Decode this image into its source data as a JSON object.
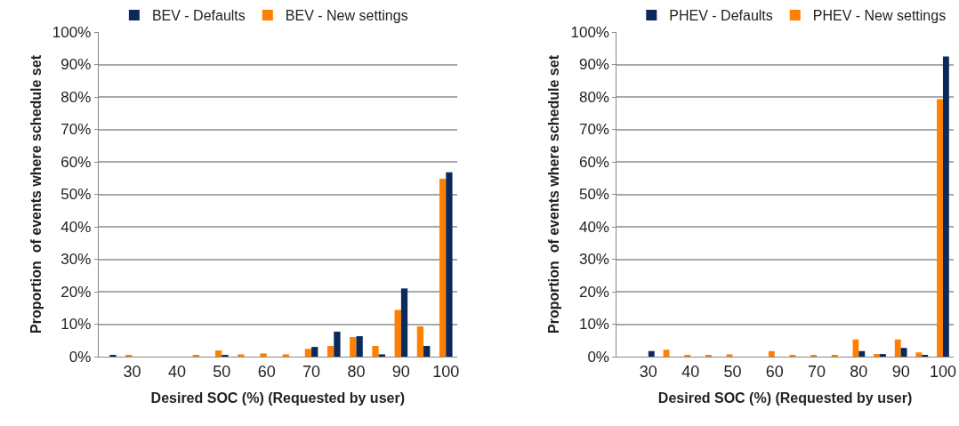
{
  "chart_data": [
    {
      "type": "bar",
      "categories": [
        null,
        "30",
        null,
        "40",
        null,
        "50",
        null,
        "60",
        null,
        "70",
        null,
        "80",
        null,
        "90",
        null,
        "100"
      ],
      "series": [
        {
          "name": "BEV - Defaults",
          "color": "#0b2a5b",
          "values": [
            0.3,
            0,
            0,
            0,
            0,
            0.3,
            0,
            0,
            0,
            3.0,
            7.7,
            6.3,
            0.7,
            21.0,
            3.3,
            56.8
          ]
        },
        {
          "name": "BEV - New settings",
          "color": "#ff7f00",
          "values": [
            0,
            0.3,
            0,
            0,
            0.3,
            1.9,
            0.7,
            1.0,
            0.7,
            2.4,
            3.3,
            6.0,
            3.3,
            14.4,
            9.3,
            54.8
          ]
        }
      ],
      "ylim": [
        0,
        100
      ],
      "yticks": [
        {
          "value": 0,
          "label": "0%"
        },
        {
          "value": 10,
          "label": "10%"
        },
        {
          "value": 20,
          "label": "20%"
        },
        {
          "value": 30,
          "label": "30%"
        },
        {
          "value": 40,
          "label": "40%"
        },
        {
          "value": 50,
          "label": "50%"
        },
        {
          "value": 60,
          "label": "60%"
        },
        {
          "value": 70,
          "label": "70%"
        },
        {
          "value": 80,
          "label": "80%"
        },
        {
          "value": 90,
          "label": "90%"
        },
        {
          "value": 100,
          "label": "100%"
        }
      ],
      "xlabel": "Desired SOC (%) (Requested by user)",
      "ylabel": "Proportion  of events where schedule set",
      "grid": "y",
      "legend": "top"
    },
    {
      "type": "bar",
      "categories": [
        null,
        "30",
        null,
        "40",
        null,
        "50",
        null,
        "60",
        null,
        "70",
        null,
        "80",
        null,
        "90",
        null,
        "100"
      ],
      "series": [
        {
          "name": "PHEV - Defaults",
          "color": "#0b2a5b",
          "values": [
            0,
            1.7,
            0,
            0,
            0,
            0,
            0,
            0,
            0,
            0,
            0,
            1.7,
            0.8,
            2.7,
            0.4,
            92.5
          ]
        },
        {
          "name": "PHEV - New settings",
          "color": "#ff7f00",
          "values": [
            0,
            0,
            2.1,
            0.4,
            0.4,
            0.7,
            0,
            1.7,
            0.4,
            0.4,
            0.4,
            5.3,
            0.8,
            5.3,
            1.3,
            79.3
          ]
        }
      ],
      "ylim": [
        0,
        100
      ],
      "yticks": [
        {
          "value": 0,
          "label": "0%"
        },
        {
          "value": 10,
          "label": "10%"
        },
        {
          "value": 20,
          "label": "20%"
        },
        {
          "value": 30,
          "label": "30%"
        },
        {
          "value": 40,
          "label": "40%"
        },
        {
          "value": 50,
          "label": "50%"
        },
        {
          "value": 60,
          "label": "60%"
        },
        {
          "value": 70,
          "label": "70%"
        },
        {
          "value": 80,
          "label": "80%"
        },
        {
          "value": 90,
          "label": "90%"
        },
        {
          "value": 100,
          "label": "100%"
        }
      ],
      "xlabel": "Desired SOC (%) (Requested by user)",
      "ylabel": "Proportion  of events where schedule set",
      "grid": "y",
      "legend": "top"
    }
  ]
}
